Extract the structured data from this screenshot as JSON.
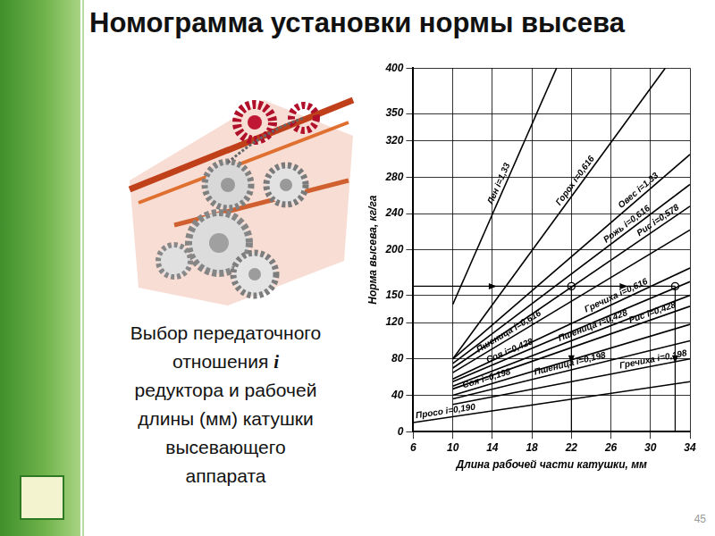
{
  "slide": {
    "title": "Номограмма установки нормы высева",
    "caption": [
      [
        {
          "text": "Выбор передаточного"
        }
      ],
      [
        {
          "text": "отношения "
        },
        {
          "text": "i",
          "italic": true
        }
      ],
      [
        {
          "text": "редуктора и рабочей"
        }
      ],
      [
        {
          "text": "длины (мм) катушки"
        }
      ],
      [
        {
          "text": "высевающего"
        }
      ],
      [
        {
          "text": "аппарата"
        }
      ]
    ],
    "page_number": "45"
  },
  "chart_data": {
    "type": "line",
    "x_label": "Длина рабочей части катушки, мм",
    "y_label": "Норма высева, кг/га",
    "xlim": [
      6,
      34
    ],
    "xticks": [
      6,
      10,
      14,
      18,
      22,
      26,
      30,
      34
    ],
    "ylim": [
      0,
      400
    ],
    "yticks": [
      0,
      40,
      80,
      120,
      150,
      200,
      240,
      280,
      320,
      350,
      400
    ],
    "grid": true,
    "series": [
      {
        "name": "Лен i=1,33",
        "color": "#000000",
        "x": [
          10,
          20.5
        ],
        "values": [
          140,
          400
        ]
      },
      {
        "name": "Горох i=0,616",
        "color": "#000000",
        "x": [
          10,
          31.5
        ],
        "values": [
          80,
          400
        ]
      },
      {
        "name": "Овес i=1,33",
        "color": "#000000",
        "x": [
          10,
          34
        ],
        "values": [
          80,
          305
        ]
      },
      {
        "name": "Рожь i=0,616",
        "color": "#000000",
        "x": [
          10,
          34
        ],
        "values": [
          75,
          272
        ]
      },
      {
        "name": "Рис i=0,578",
        "color": "#000000",
        "x": [
          10,
          34
        ],
        "values": [
          70,
          248
        ]
      },
      {
        "name": "Пшеница i=0,616",
        "color": "#000000",
        "x": [
          10,
          34
        ],
        "values": [
          65,
          222
        ]
      },
      {
        "name": "Гречиха i=0,616",
        "color": "#000000",
        "x": [
          10,
          34
        ],
        "values": [
          58,
          180
        ]
      },
      {
        "name": "Соя i=0,428",
        "color": "#000000",
        "x": [
          10,
          34
        ],
        "values": [
          55,
          165
        ]
      },
      {
        "name": "Пшеница i=0,428",
        "color": "#000000",
        "x": [
          10,
          34
        ],
        "values": [
          50,
          150
        ]
      },
      {
        "name": "Рис i=0,428",
        "color": "#000000",
        "x": [
          10,
          34
        ],
        "values": [
          47,
          138
        ]
      },
      {
        "name": "Соя i=0,198",
        "color": "#000000",
        "x": [
          10,
          34
        ],
        "values": [
          40,
          118
        ]
      },
      {
        "name": "Пшеница i=0,198",
        "color": "#000000",
        "x": [
          10,
          34
        ],
        "values": [
          36,
          100
        ]
      },
      {
        "name": "Гречиха i=0,198",
        "color": "#000000",
        "x": [
          10,
          34
        ],
        "values": [
          30,
          80
        ]
      },
      {
        "name": "Просо i=0,190",
        "color": "#000000",
        "x": [
          6,
          34
        ],
        "values": [
          10,
          55
        ]
      },
      {
        "color": "#000000",
        "x": [
          6,
          22,
          32.5
        ],
        "values": [
          160,
          160,
          160
        ],
        "marker": "arrow"
      },
      {
        "color": "#000000",
        "x": [
          22,
          22
        ],
        "values": [
          160,
          0
        ],
        "marker": "arrow"
      },
      {
        "color": "#000000",
        "x": [
          32.5,
          32.5
        ],
        "values": [
          160,
          0
        ],
        "marker": "arrow"
      },
      {
        "color": "#000000",
        "x": [
          22,
          32.5
        ],
        "values": [
          160,
          160
        ],
        "marker": "circle",
        "line_style": "none"
      }
    ]
  }
}
